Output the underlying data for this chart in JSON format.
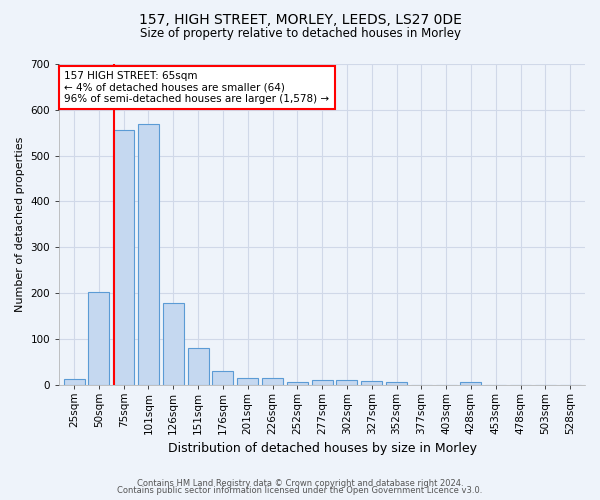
{
  "title1": "157, HIGH STREET, MORLEY, LEEDS, LS27 0DE",
  "title2": "Size of property relative to detached houses in Morley",
  "xlabel": "Distribution of detached houses by size in Morley",
  "ylabel": "Number of detached properties",
  "footer1": "Contains HM Land Registry data © Crown copyright and database right 2024.",
  "footer2": "Contains public sector information licensed under the Open Government Licence v3.0.",
  "bar_labels": [
    "25sqm",
    "50sqm",
    "75sqm",
    "101sqm",
    "126sqm",
    "151sqm",
    "176sqm",
    "201sqm",
    "226sqm",
    "252sqm",
    "277sqm",
    "302sqm",
    "327sqm",
    "352sqm",
    "377sqm",
    "403sqm",
    "428sqm",
    "453sqm",
    "478sqm",
    "503sqm",
    "528sqm"
  ],
  "bar_values": [
    13,
    203,
    555,
    568,
    178,
    80,
    30,
    14,
    14,
    6,
    10,
    9,
    8,
    5,
    0,
    0,
    5,
    0,
    0,
    0,
    0
  ],
  "bar_color": "#c5d8f0",
  "bar_edge_color": "#5b9bd5",
  "grid_color": "#d0d8e8",
  "background_color": "#eef3fa",
  "annotation_text": "157 HIGH STREET: 65sqm\n← 4% of detached houses are smaller (64)\n96% of semi-detached houses are larger (1,578) →",
  "annotation_box_color": "white",
  "annotation_box_edge_color": "red",
  "vline_x": 2,
  "vline_color": "red",
  "ylim": [
    0,
    700
  ],
  "yticks": [
    0,
    100,
    200,
    300,
    400,
    500,
    600,
    700
  ],
  "title1_fontsize": 10,
  "title2_fontsize": 8.5,
  "ylabel_fontsize": 8,
  "xlabel_fontsize": 9,
  "tick_fontsize": 7.5,
  "footer_fontsize": 6.0,
  "annotation_fontsize": 7.5
}
